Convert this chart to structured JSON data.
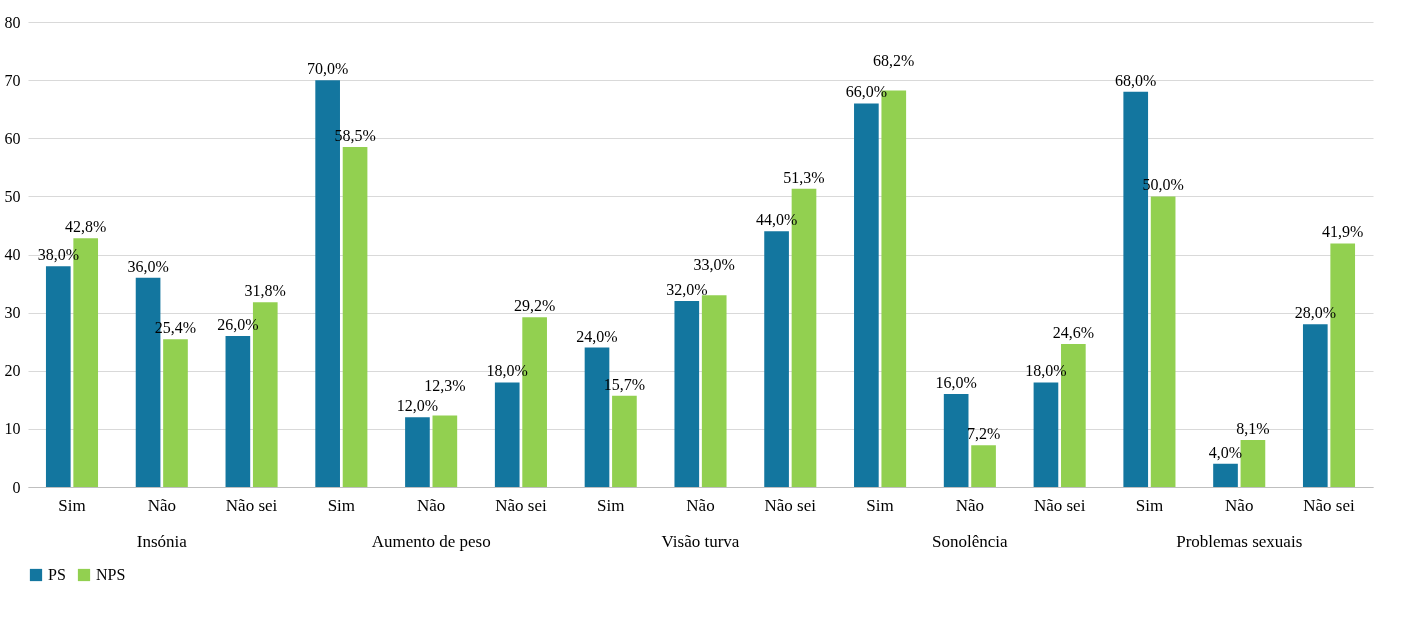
{
  "chart_data": {
    "type": "bar",
    "categories": [
      "Sim",
      "Não",
      "Não sei",
      "Sim",
      "Não",
      "Não sei",
      "Sim",
      "Não",
      "Não sei",
      "Sim",
      "Não",
      "Não sei",
      "Sim",
      "Não",
      "Não sei"
    ],
    "annotations": [
      "Insónia",
      "Aumento de peso",
      "Visão turva",
      "Sonolência",
      "Problemas sexuais"
    ],
    "series": [
      {
        "name": "PS",
        "color": "#13769f",
        "values": [
          38,
          36,
          26,
          70,
          12,
          18,
          24,
          32,
          44,
          66,
          16,
          18,
          68,
          4,
          28
        ],
        "value_labels": [
          "38,0%",
          "36,0%",
          "26,0%",
          "70,0%",
          "12,0%",
          "18,0%",
          "24,0%",
          "32,0%",
          "44,0%",
          "66,0%",
          "16,0%",
          "18,0%",
          "68,0%",
          "4,0%",
          "28,0%"
        ]
      },
      {
        "name": "NPS",
        "color": "#92d050",
        "values": [
          42.8,
          25.4,
          31.8,
          58.5,
          12.3,
          29.2,
          15.7,
          33,
          51.3,
          68.2,
          7.2,
          24.6,
          50,
          8.1,
          41.9
        ],
        "value_labels": [
          "42,8%",
          "25,4%",
          "31,8%",
          "58,5%",
          "12,3%",
          "29,2%",
          "15,7%",
          "33,0%",
          "51,3%",
          "68,2%",
          "7,2%",
          "24,6%",
          "50,0%",
          "8,1%",
          "41,9%"
        ]
      }
    ],
    "ylim": [
      0,
      80
    ],
    "yticks": [
      0,
      10,
      20,
      30,
      40,
      50,
      60,
      70,
      80
    ],
    "grid": "y",
    "legend": "bottom"
  }
}
